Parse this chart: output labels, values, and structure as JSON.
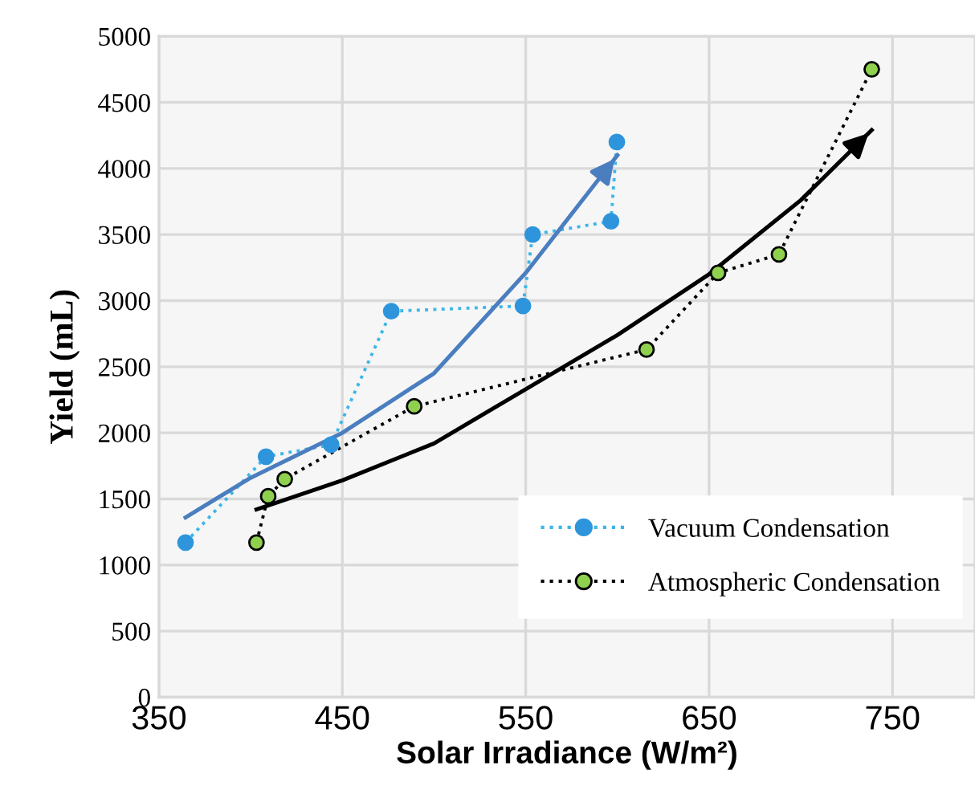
{
  "chart_data": {
    "type": "line",
    "xlabel": "Solar Irradiance (W/m²)",
    "ylabel": "Yield (mL)",
    "xlim": [
      350,
      795
    ],
    "xticks": [
      350,
      450,
      550,
      650,
      750
    ],
    "ylim": [
      0,
      5000
    ],
    "yticks": [
      0,
      500,
      1000,
      1500,
      2000,
      2500,
      3000,
      3500,
      4000,
      4500,
      5000
    ],
    "grid": true,
    "legend": "bottom right",
    "series": [
      {
        "name": "Vacuum Condensation",
        "color": "#3cb6e8",
        "colors": [
          "#2e95dc",
          "#2e95dc",
          "#2e95dc",
          "#2e95dc",
          "#2e95dc",
          "#2e95dc",
          "#2e95dc",
          "#2e95dc"
        ],
        "marker": "circle",
        "line_style": "dotted",
        "x": [
          364.5,
          408.4,
          443.9,
          476.7,
          548.5,
          553.8,
          596.5,
          599.7
        ],
        "values": [
          1170,
          1820,
          1910,
          2920,
          2960,
          3500,
          3600,
          4200
        ]
      },
      {
        "name": "Atmospheric Condensation",
        "color": "#000000",
        "colors": [
          "#8fd14f",
          "#8fd14f",
          "#8fd14f",
          "#8fd14f",
          "#8fd14f",
          "#8fd14f",
          "#8fd14f",
          "#8fd14f"
        ],
        "marker": "circle",
        "line_style": "dotted",
        "x": [
          403.2,
          409.6,
          418.6,
          489.2,
          615.9,
          654.9,
          688.1,
          738.7
        ],
        "values": [
          1170,
          1520,
          1650,
          2200,
          2630,
          3210,
          3350,
          4750
        ]
      },
      {
        "color": "#4a7ebf",
        "marker": "none",
        "line_style": "solid",
        "x": [
          364.5,
          400,
          450,
          500,
          550,
          600
        ],
        "values": [
          1360,
          1660,
          2000,
          2450,
          3210,
          4100
        ]
      },
      {
        "color": "#000000",
        "marker": "none",
        "line_style": "solid",
        "x": [
          403.2,
          450,
          500,
          550,
          600,
          650,
          700,
          738.7
        ],
        "values": [
          1420,
          1640,
          1920,
          2330,
          2740,
          3200,
          3760,
          4290
        ]
      }
    ]
  }
}
